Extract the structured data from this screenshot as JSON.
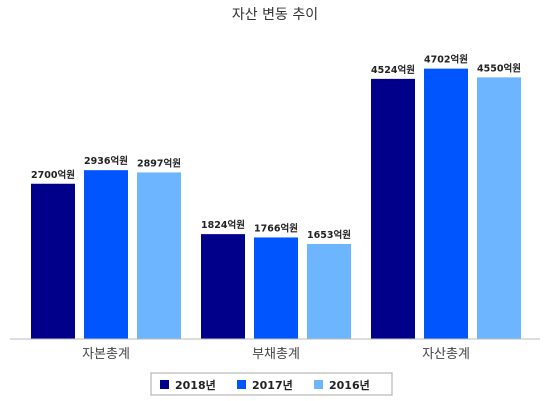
{
  "chart_data": {
    "type": "bar",
    "title": "자산 변동 추이",
    "categories": [
      "자본총계",
      "부채총계",
      "자산총계"
    ],
    "unit_suffix": "억원",
    "series": [
      {
        "name": "2018년",
        "color": "#00008B",
        "values": [
          2700,
          1824,
          4524
        ]
      },
      {
        "name": "2017년",
        "color": "#0055FF",
        "values": [
          2936,
          1766,
          4702
        ]
      },
      {
        "name": "2016년",
        "color": "#6DB6FF",
        "values": [
          2897,
          1653,
          4550
        ]
      }
    ],
    "ylim": [
      0,
      5200
    ],
    "grid": false,
    "legend_position": "bottom"
  }
}
